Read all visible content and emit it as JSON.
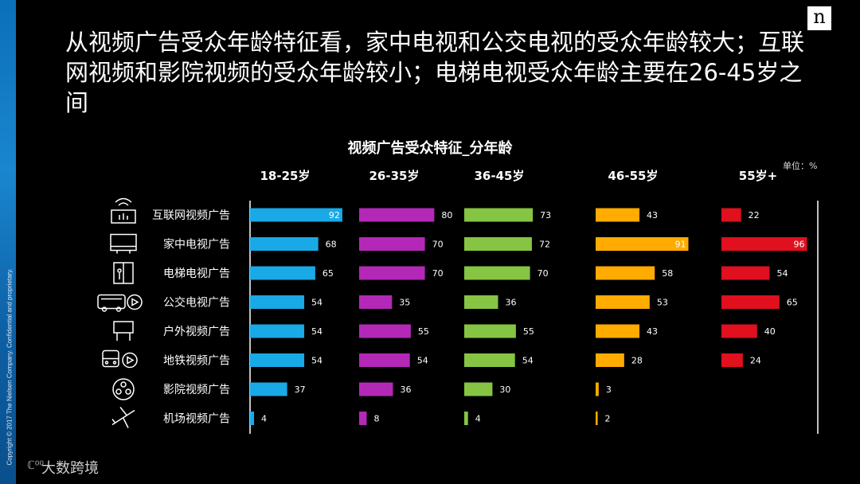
{
  "headline": "从视频广告受众年龄特征看，家中电视和公交电视的受众年龄较大；互联网视频和影院视频的受众年龄较小；电梯电视受众年龄主要在26-45岁之间",
  "copyright": "Copyright © 2017 The Nielsen Company. Confidential and proprietary.",
  "logo": "n",
  "watermark": "大数跨境",
  "chart_data": {
    "type": "bar",
    "title": "视频广告受众特征_分年龄",
    "unit": "单位：%",
    "categories": [
      "互联网视频广告",
      "家中电视广告",
      "电梯电视广告",
      "公交电视广告",
      "户外视频广告",
      "地铁视频广告",
      "影院视频广告",
      "机场视频广告"
    ],
    "category_icons": [
      "router-icon",
      "tv-icon",
      "elevator-icon",
      "bus-icon",
      "billboard-icon",
      "subway-icon",
      "film-reel-icon",
      "airplane-icon"
    ],
    "series": [
      {
        "name": "18-25岁",
        "color": "#19a9e6",
        "values": [
          92,
          68,
          65,
          54,
          54,
          54,
          37,
          4
        ]
      },
      {
        "name": "26-35岁",
        "color": "#b428b8",
        "values": [
          80,
          70,
          70,
          35,
          55,
          54,
          36,
          8
        ]
      },
      {
        "name": "36-45岁",
        "color": "#86c443",
        "values": [
          73,
          72,
          70,
          36,
          55,
          54,
          30,
          4
        ]
      },
      {
        "name": "46-55岁",
        "color": "#ffab00",
        "values": [
          43,
          91,
          58,
          53,
          43,
          28,
          3,
          2
        ]
      },
      {
        "name": "55岁+",
        "color": "#e0101e",
        "values": [
          22,
          96,
          54,
          65,
          40,
          24,
          null,
          null
        ]
      }
    ]
  }
}
